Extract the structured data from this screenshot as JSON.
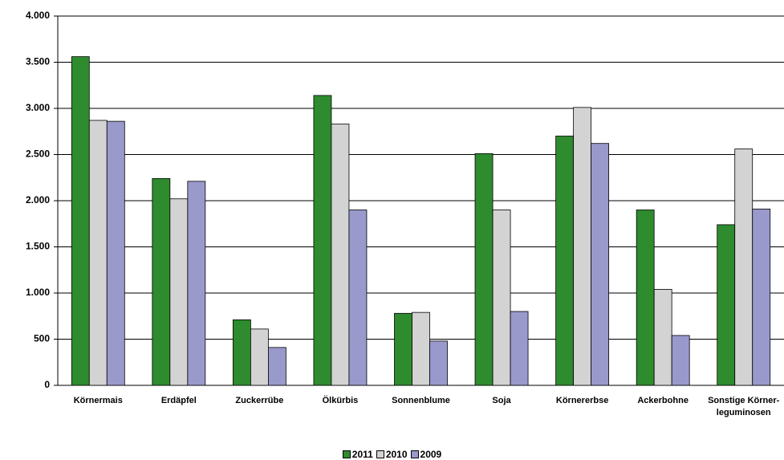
{
  "chart_data": {
    "type": "bar",
    "categories": [
      "Körnermais",
      "Erdäpfel",
      "Zuckerrübe",
      "Ölkürbis",
      "Sonnenblume",
      "Soja",
      "Körnererbse",
      "Ackerbohne",
      "Sonstige Körner-leguminosen"
    ],
    "series": [
      {
        "name": "2011",
        "color": "#2e8b2e",
        "values": [
          3560,
          2240,
          710,
          3140,
          780,
          2510,
          2700,
          1900,
          1740
        ]
      },
      {
        "name": "2010",
        "color": "#d3d3d3",
        "values": [
          2870,
          2020,
          610,
          2830,
          790,
          1900,
          3010,
          1040,
          2560
        ]
      },
      {
        "name": "2009",
        "color": "#9999cc",
        "values": [
          2860,
          2210,
          410,
          1900,
          480,
          800,
          2620,
          540,
          1910
        ]
      }
    ],
    "ylim": [
      0,
      4000
    ],
    "yticks": [
      0,
      500,
      {
        "value": 1000,
        "label": "1.000"
      },
      {
        "value": 1500,
        "label": "1.500"
      },
      {
        "value": 2000,
        "label": "2.000"
      },
      {
        "value": 2500,
        "label": "2.500"
      },
      {
        "value": 3000,
        "label": "3.000"
      },
      {
        "value": 3500,
        "label": "3.500"
      },
      {
        "value": 4000,
        "label": "4.000"
      }
    ],
    "grid": true,
    "legend": "bottom"
  }
}
